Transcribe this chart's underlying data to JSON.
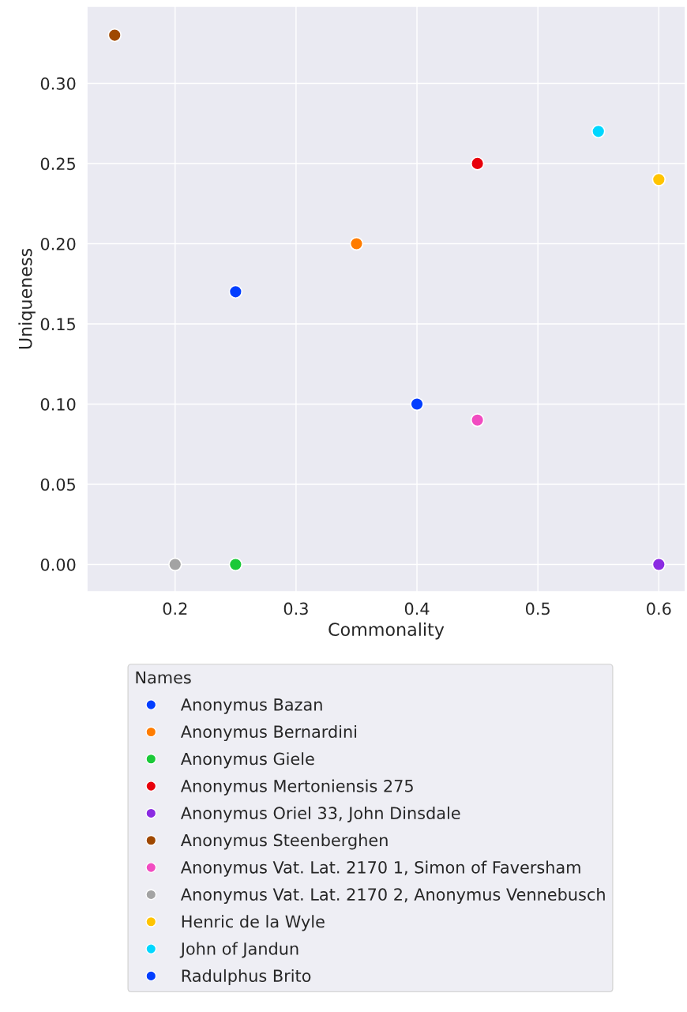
{
  "chart_data": {
    "type": "scatter",
    "xlabel": "Commonality",
    "ylabel": "Uniqueness",
    "legend_title": "Names",
    "xlim": [
      0.127,
      0.622
    ],
    "xticks": [
      {
        "value": 0.2,
        "label": "0.2"
      },
      {
        "value": 0.3,
        "label": "0.3"
      },
      {
        "value": 0.4,
        "label": "0.4"
      },
      {
        "value": 0.5,
        "label": "0.5"
      },
      {
        "value": 0.6,
        "label": "0.6"
      }
    ],
    "ylim": [
      -0.017,
      0.348
    ],
    "yticks": [
      {
        "value": 0,
        "label": "0.00"
      },
      {
        "value": 0.05,
        "label": "0.05"
      },
      {
        "value": 0.1,
        "label": "0.10"
      },
      {
        "value": 0.15,
        "label": "0.15"
      },
      {
        "value": 0.2,
        "label": "0.20"
      },
      {
        "value": 0.25,
        "label": "0.25"
      },
      {
        "value": 0.3,
        "label": "0.30"
      }
    ],
    "grid": true,
    "legend": "bottom",
    "marker": "circle",
    "series": [
      {
        "name": "Anonymus Bazan",
        "color": "#023eff",
        "x": [
          0.25
        ],
        "values": [
          0.17
        ]
      },
      {
        "name": "Anonymus Bernardini",
        "color": "#ff7c00",
        "x": [
          0.35
        ],
        "values": [
          0.2
        ]
      },
      {
        "name": "Anonymus Giele",
        "color": "#1ac938",
        "x": [
          0.25
        ],
        "values": [
          0.0
        ]
      },
      {
        "name": "Anonymus Mertoniensis 275",
        "color": "#e8000b",
        "x": [
          0.45
        ],
        "values": [
          0.25
        ]
      },
      {
        "name": "Anonymus Oriel 33, John Dinsdale",
        "color": "#8b2be2",
        "x": [
          0.6
        ],
        "values": [
          0.0
        ]
      },
      {
        "name": "Anonymus Steenberghen",
        "color": "#9f4800",
        "x": [
          0.15
        ],
        "values": [
          0.33
        ]
      },
      {
        "name": "Anonymus Vat. Lat. 2170 1, Simon of Faversham",
        "color": "#f14cc1",
        "x": [
          0.45
        ],
        "values": [
          0.09
        ]
      },
      {
        "name": "Anonymus Vat. Lat. 2170 2, Anonymus Vennebusch",
        "color": "#a3a3a3",
        "x": [
          0.2
        ],
        "values": [
          0.0
        ]
      },
      {
        "name": "Henric de la Wyle",
        "color": "#ffc400",
        "x": [
          0.6
        ],
        "values": [
          0.24
        ]
      },
      {
        "name": "John of Jandun",
        "color": "#00d7ff",
        "x": [
          0.55
        ],
        "values": [
          0.27
        ]
      },
      {
        "name": "Radulphus Brito",
        "color": "#023eff",
        "x": [
          0.4
        ],
        "values": [
          0.1
        ]
      }
    ]
  }
}
